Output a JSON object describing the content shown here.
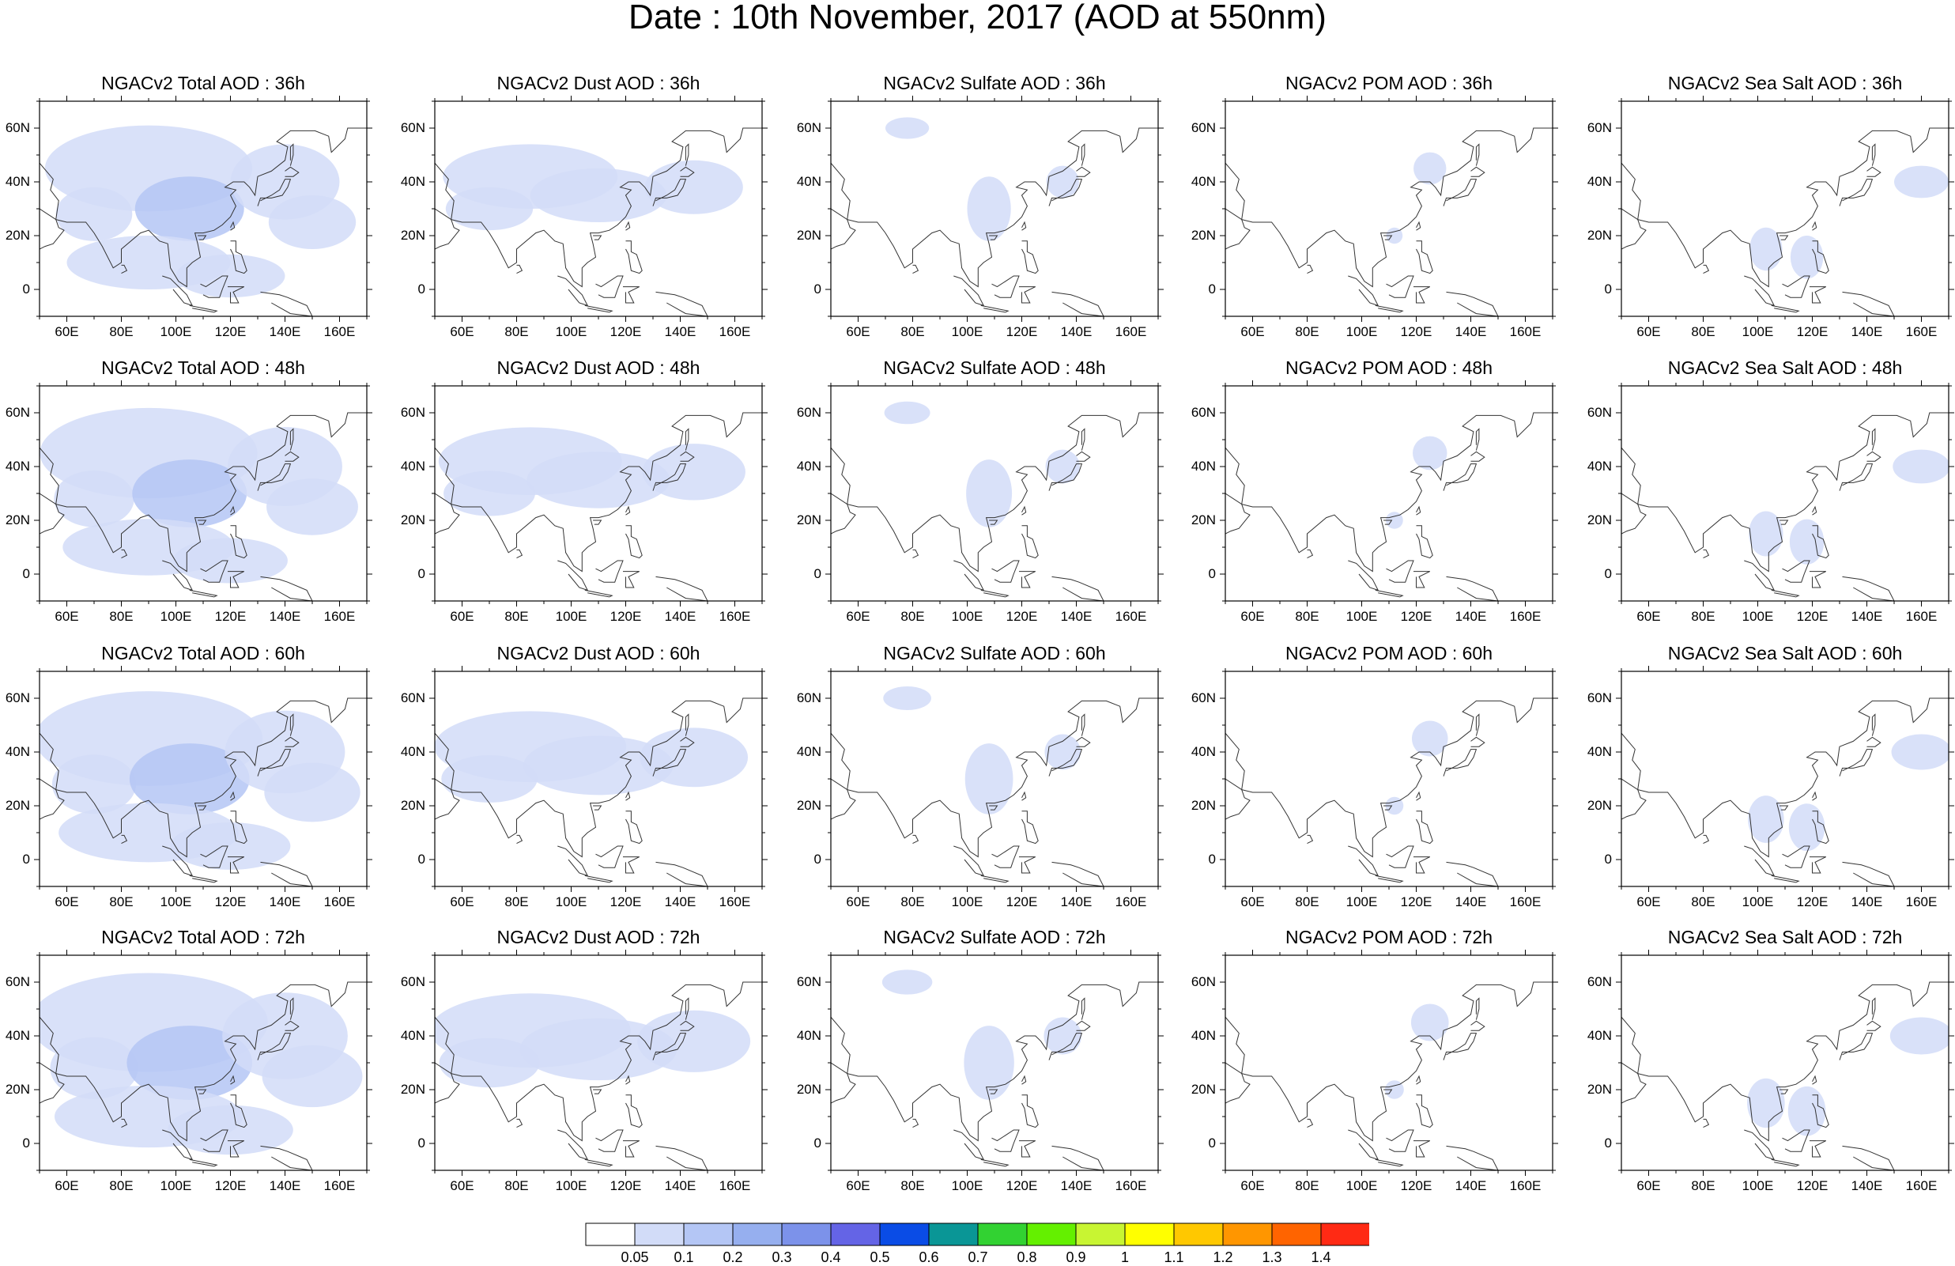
{
  "title": "Date : 10th November, 2017 (AOD at 550nm)",
  "x_ticks": [
    "60E",
    "80E",
    "100E",
    "120E",
    "140E",
    "160E"
  ],
  "y_ticks": [
    "60N",
    "40N",
    "20N",
    "0"
  ],
  "columns": [
    {
      "species": "total",
      "titles": [
        "NGACv2 Total AOD : 36h",
        "NGACv2 Total AOD : 48h",
        "NGACv2 Total AOD : 60h",
        "NGACv2 Total AOD : 72h"
      ]
    },
    {
      "species": "dust",
      "titles": [
        "NGACv2 Dust AOD : 36h",
        "NGACv2 Dust AOD : 48h",
        "NGACv2 Dust AOD : 60h",
        "NGACv2 Dust AOD : 72h"
      ]
    },
    {
      "species": "sulfate",
      "titles": [
        "NGACv2 Sulfate AOD : 36h",
        "NGACv2 Sulfate AOD : 48h",
        "NGACv2 Sulfate AOD : 60h",
        "NGACv2 Sulfate AOD : 72h"
      ]
    },
    {
      "species": "pom",
      "titles": [
        "NGACv2 POM AOD : 36h",
        "NGACv2 POM AOD : 48h",
        "NGACv2 POM AOD : 60h",
        "NGACv2 POM AOD : 72h"
      ]
    },
    {
      "species": "seasalt",
      "titles": [
        "NGACv2 Sea Salt AOD : 36h",
        "NGACv2 Sea Salt AOD : 48h",
        "NGACv2 Sea Salt AOD : 60h",
        "NGACv2 Sea Salt  AOD : 72h"
      ]
    }
  ],
  "map_extent": {
    "lon": [
      50,
      170
    ],
    "lat": [
      -10,
      70
    ]
  },
  "colorbar": {
    "labels": [
      "0.05",
      "0.1",
      "0.2",
      "0.3",
      "0.4",
      "0.5",
      "0.6",
      "0.7",
      "0.8",
      "0.9",
      "1",
      "1.1",
      "1.2",
      "1.3",
      "1.4"
    ],
    "colors": [
      "#ffffff",
      "#d2dcf8",
      "#b4c6f5",
      "#96afef",
      "#7c92ea",
      "#6464e6",
      "#0a4ce6",
      "#0a9696",
      "#32d232",
      "#64f000",
      "#c8f532",
      "#ffff00",
      "#ffc800",
      "#ff9600",
      "#ff6400",
      "#ff2a14"
    ]
  }
}
